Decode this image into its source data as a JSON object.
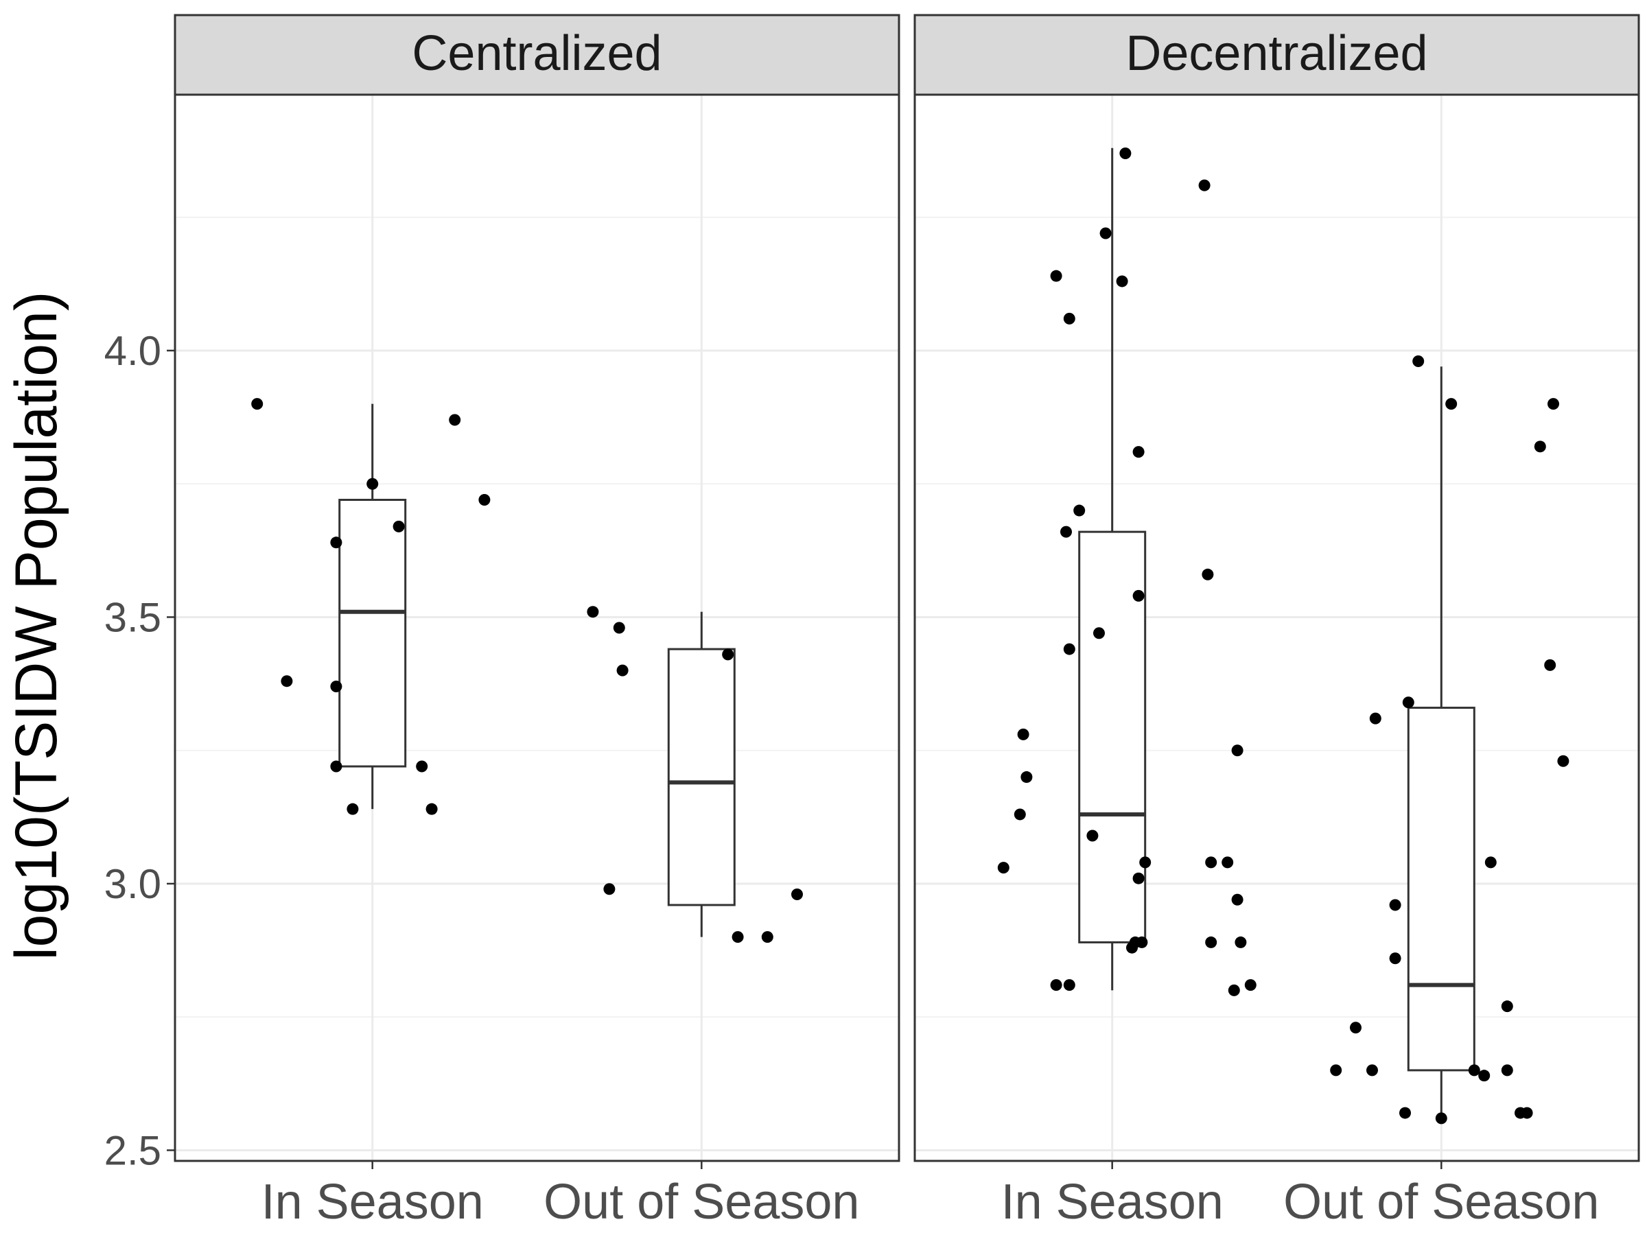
{
  "chart_data": {
    "type": "box",
    "ylabel": "log10(TSIDW Population)",
    "xlabel": "",
    "ylim": [
      2.48,
      4.48
    ],
    "yticks": [
      2.5,
      3.0,
      3.5,
      4.0
    ],
    "ytick_labels": [
      "2.5",
      "3.0",
      "3.5",
      "4.0"
    ],
    "y_minor_gridlines": [
      2.75,
      3.25,
      3.75,
      4.25
    ],
    "categories": [
      "In Season",
      "Out of Season"
    ],
    "grid": true,
    "theme": "bw",
    "colors": {
      "points": "#000000",
      "box": "#333333",
      "strip": "#d9d9d9",
      "grid": "#ebebeb",
      "frame": "#333333",
      "tick_text": "#4d4d4d"
    },
    "panels": [
      {
        "title": "Centralized",
        "groups": [
          {
            "category": "In Season",
            "box": {
              "lower_whisker": 3.14,
              "q1": 3.22,
              "median": 3.51,
              "q3": 3.72,
              "upper_whisker": 3.9
            },
            "points": [
              {
                "x": -0.35,
                "y": 3.9
              },
              {
                "x": -0.26,
                "y": 3.38
              },
              {
                "x": -0.11,
                "y": 3.64
              },
              {
                "x": -0.11,
                "y": 3.37
              },
              {
                "x": -0.11,
                "y": 3.22
              },
              {
                "x": -0.06,
                "y": 3.14
              },
              {
                "x": 0.0,
                "y": 3.75
              },
              {
                "x": 0.08,
                "y": 3.67
              },
              {
                "x": 0.15,
                "y": 3.22
              },
              {
                "x": 0.18,
                "y": 3.14
              },
              {
                "x": 0.25,
                "y": 3.87
              },
              {
                "x": 0.34,
                "y": 3.72
              }
            ]
          },
          {
            "category": "Out of Season",
            "box": {
              "lower_whisker": 2.9,
              "q1": 2.96,
              "median": 3.19,
              "q3": 3.44,
              "upper_whisker": 3.51
            },
            "points": [
              {
                "x": -0.33,
                "y": 3.51
              },
              {
                "x": -0.28,
                "y": 2.99
              },
              {
                "x": -0.25,
                "y": 3.48
              },
              {
                "x": -0.24,
                "y": 3.4
              },
              {
                "x": 0.08,
                "y": 3.43
              },
              {
                "x": 0.11,
                "y": 2.9
              },
              {
                "x": 0.2,
                "y": 2.9
              },
              {
                "x": 0.29,
                "y": 2.98
              }
            ]
          }
        ]
      },
      {
        "title": "Decentralized",
        "groups": [
          {
            "category": "In Season",
            "box": {
              "lower_whisker": 2.8,
              "q1": 2.89,
              "median": 3.13,
              "q3": 3.66,
              "upper_whisker": 4.38
            },
            "points": [
              {
                "x": -0.33,
                "y": 3.03
              },
              {
                "x": -0.28,
                "y": 3.13
              },
              {
                "x": -0.27,
                "y": 3.28
              },
              {
                "x": -0.26,
                "y": 3.2
              },
              {
                "x": -0.17,
                "y": 4.14
              },
              {
                "x": -0.17,
                "y": 2.81
              },
              {
                "x": -0.13,
                "y": 4.06
              },
              {
                "x": -0.13,
                "y": 3.44
              },
              {
                "x": -0.13,
                "y": 2.81
              },
              {
                "x": -0.14,
                "y": 3.66
              },
              {
                "x": -0.1,
                "y": 3.7
              },
              {
                "x": -0.06,
                "y": 3.09
              },
              {
                "x": -0.04,
                "y": 3.47
              },
              {
                "x": -0.02,
                "y": 4.22
              },
              {
                "x": 0.03,
                "y": 4.13
              },
              {
                "x": 0.04,
                "y": 4.37
              },
              {
                "x": 0.06,
                "y": 2.88
              },
              {
                "x": 0.07,
                "y": 2.89
              },
              {
                "x": 0.08,
                "y": 3.81
              },
              {
                "x": 0.08,
                "y": 3.54
              },
              {
                "x": 0.08,
                "y": 3.01
              },
              {
                "x": 0.09,
                "y": 2.89
              },
              {
                "x": 0.1,
                "y": 3.04
              },
              {
                "x": 0.28,
                "y": 4.31
              },
              {
                "x": 0.29,
                "y": 3.58
              },
              {
                "x": 0.3,
                "y": 3.04
              },
              {
                "x": 0.3,
                "y": 2.89
              },
              {
                "x": 0.35,
                "y": 3.04
              },
              {
                "x": 0.37,
                "y": 2.8
              },
              {
                "x": 0.38,
                "y": 3.25
              },
              {
                "x": 0.38,
                "y": 2.97
              },
              {
                "x": 0.39,
                "y": 2.89
              },
              {
                "x": 0.42,
                "y": 2.81
              }
            ]
          },
          {
            "category": "Out of Season",
            "box": {
              "lower_whisker": 2.56,
              "q1": 2.65,
              "median": 2.81,
              "q3": 3.33,
              "upper_whisker": 3.97
            },
            "points": [
              {
                "x": -0.32,
                "y": 2.65
              },
              {
                "x": -0.26,
                "y": 2.73
              },
              {
                "x": -0.21,
                "y": 2.65
              },
              {
                "x": -0.2,
                "y": 3.31
              },
              {
                "x": -0.14,
                "y": 2.96
              },
              {
                "x": -0.14,
                "y": 2.86
              },
              {
                "x": -0.11,
                "y": 2.57
              },
              {
                "x": -0.1,
                "y": 3.34
              },
              {
                "x": -0.07,
                "y": 3.98
              },
              {
                "x": 0.0,
                "y": 2.56
              },
              {
                "x": 0.03,
                "y": 3.9
              },
              {
                "x": 0.1,
                "y": 2.65
              },
              {
                "x": 0.13,
                "y": 2.64
              },
              {
                "x": 0.15,
                "y": 3.04
              },
              {
                "x": 0.2,
                "y": 2.77
              },
              {
                "x": 0.2,
                "y": 2.65
              },
              {
                "x": 0.24,
                "y": 2.57
              },
              {
                "x": 0.26,
                "y": 2.57
              },
              {
                "x": 0.3,
                "y": 3.82
              },
              {
                "x": 0.33,
                "y": 3.41
              },
              {
                "x": 0.34,
                "y": 3.9
              },
              {
                "x": 0.37,
                "y": 3.23
              }
            ]
          }
        ]
      }
    ]
  }
}
